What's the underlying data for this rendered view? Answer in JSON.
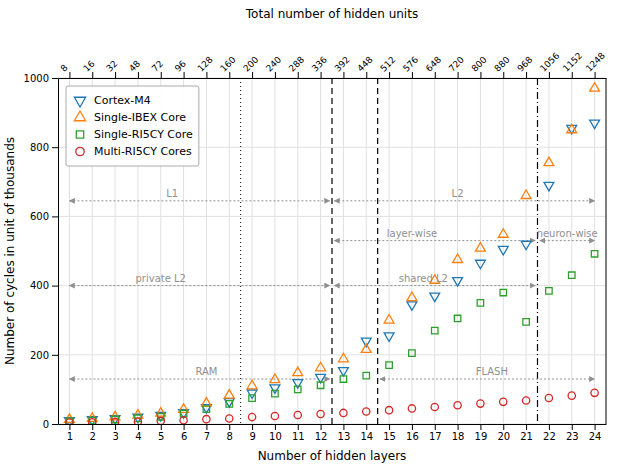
{
  "chart_data": {
    "type": "scatter",
    "title": "Total number of hidden units",
    "x_label": "Number of hidden layers",
    "y_label": "Number of cycles in unit of thousands",
    "x": [
      1,
      2,
      3,
      4,
      5,
      6,
      7,
      8,
      9,
      10,
      11,
      12,
      13,
      14,
      15,
      16,
      17,
      18,
      19,
      20,
      21,
      22,
      23,
      24
    ],
    "xlim": [
      0.5,
      24.5
    ],
    "xticks": [
      1,
      2,
      3,
      4,
      5,
      6,
      7,
      8,
      9,
      10,
      11,
      12,
      13,
      14,
      15,
      16,
      17,
      18,
      19,
      20,
      21,
      22,
      23,
      24
    ],
    "x2ticks": [
      {
        "value": 1,
        "label": "8"
      },
      {
        "value": 2,
        "label": "16"
      },
      {
        "value": 3,
        "label": "32"
      },
      {
        "value": 4,
        "label": "48"
      },
      {
        "value": 5,
        "label": "72"
      },
      {
        "value": 6,
        "label": "96"
      },
      {
        "value": 7,
        "label": "128"
      },
      {
        "value": 8,
        "label": "160"
      },
      {
        "value": 9,
        "label": "200"
      },
      {
        "value": 10,
        "label": "240"
      },
      {
        "value": 11,
        "label": "288"
      },
      {
        "value": 12,
        "label": "336"
      },
      {
        "value": 13,
        "label": "392"
      },
      {
        "value": 14,
        "label": "448"
      },
      {
        "value": 15,
        "label": "512"
      },
      {
        "value": 16,
        "label": "576"
      },
      {
        "value": 17,
        "label": "648"
      },
      {
        "value": 18,
        "label": "720"
      },
      {
        "value": 19,
        "label": "800"
      },
      {
        "value": 20,
        "label": "880"
      },
      {
        "value": 21,
        "label": "968"
      },
      {
        "value": 22,
        "label": "1056"
      },
      {
        "value": 23,
        "label": "1152"
      },
      {
        "value": 24,
        "label": "1248"
      }
    ],
    "ylim": [
      0,
      1000
    ],
    "yticks": [
      0,
      200,
      400,
      600,
      800,
      1000
    ],
    "grid": true,
    "legend": "upper left",
    "series": [
      {
        "name": "Cortex-M4",
        "color": "#1f77b4",
        "marker": "triangle-down",
        "values": [
          10,
          13,
          16,
          20,
          25,
          33,
          48,
          65,
          90,
          105,
          120,
          135,
          155,
          240,
          255,
          345,
          370,
          415,
          465,
          505,
          520,
          690,
          855,
          870
        ]
      },
      {
        "name": "Single-IBEX Core",
        "color": "#ff7f0e",
        "marker": "triangle-up",
        "values": [
          13,
          16,
          20,
          25,
          31,
          42,
          60,
          83,
          110,
          128,
          148,
          162,
          188,
          215,
          300,
          365,
          415,
          475,
          508,
          548,
          660,
          755,
          850,
          970
        ]
      },
      {
        "name": "Single-RI5CY Core",
        "color": "#2ca02c",
        "marker": "square",
        "values": [
          8,
          10,
          13,
          16,
          21,
          30,
          43,
          58,
          75,
          88,
          100,
          112,
          130,
          140,
          170,
          205,
          270,
          305,
          350,
          380,
          295,
          385,
          430,
          492
        ]
      },
      {
        "name": "Multi-RI5CY Cores",
        "color": "#d62728",
        "marker": "circle",
        "values": [
          4,
          5,
          6,
          7,
          9,
          11,
          14,
          16,
          20,
          23,
          26,
          29,
          32,
          36,
          40,
          45,
          49,
          54,
          59,
          64,
          68,
          75,
          82,
          90
        ]
      }
    ],
    "vlines": [
      {
        "x": 8.5,
        "line_style": "dotted"
      },
      {
        "x": 12.5,
        "line_style": "dashed"
      },
      {
        "x": 14.5,
        "line_style": "dashed"
      },
      {
        "x": 21.5,
        "line_style": "dashdot"
      }
    ],
    "annotations": [
      {
        "text": "L1",
        "x1": 1.0,
        "x2": 12.4,
        "y": 645,
        "label_x": 5.5,
        "color": "#909090"
      },
      {
        "text": "L2",
        "x1": 12.6,
        "x2": 24.0,
        "y": 645,
        "label_x": 18.0,
        "color": "#909090"
      },
      {
        "text": "private L2",
        "x1": 1.0,
        "x2": 12.4,
        "y": 400,
        "label_x": 5.0,
        "color": "#909090"
      },
      {
        "text": "shared L2",
        "x1": 12.6,
        "x2": 21.4,
        "y": 400,
        "label_x": 16.5,
        "color": "#909090"
      },
      {
        "text": "RAM",
        "x1": 1.0,
        "x2": 12.4,
        "y": 130,
        "label_x": 7.0,
        "color": "#909090"
      },
      {
        "text": "FLASH",
        "x1": 14.6,
        "x2": 24.0,
        "y": 130,
        "label_x": 19.5,
        "color": "#909090"
      },
      {
        "text": "layer-wise",
        "x1": 12.6,
        "x2": 21.4,
        "y": 530,
        "label_x": 16.0,
        "color": "#909090"
      },
      {
        "text": "neuron-wise",
        "x1": 21.6,
        "x2": 24.0,
        "y": 530,
        "label_x": 22.8,
        "color": "#909090"
      }
    ]
  }
}
